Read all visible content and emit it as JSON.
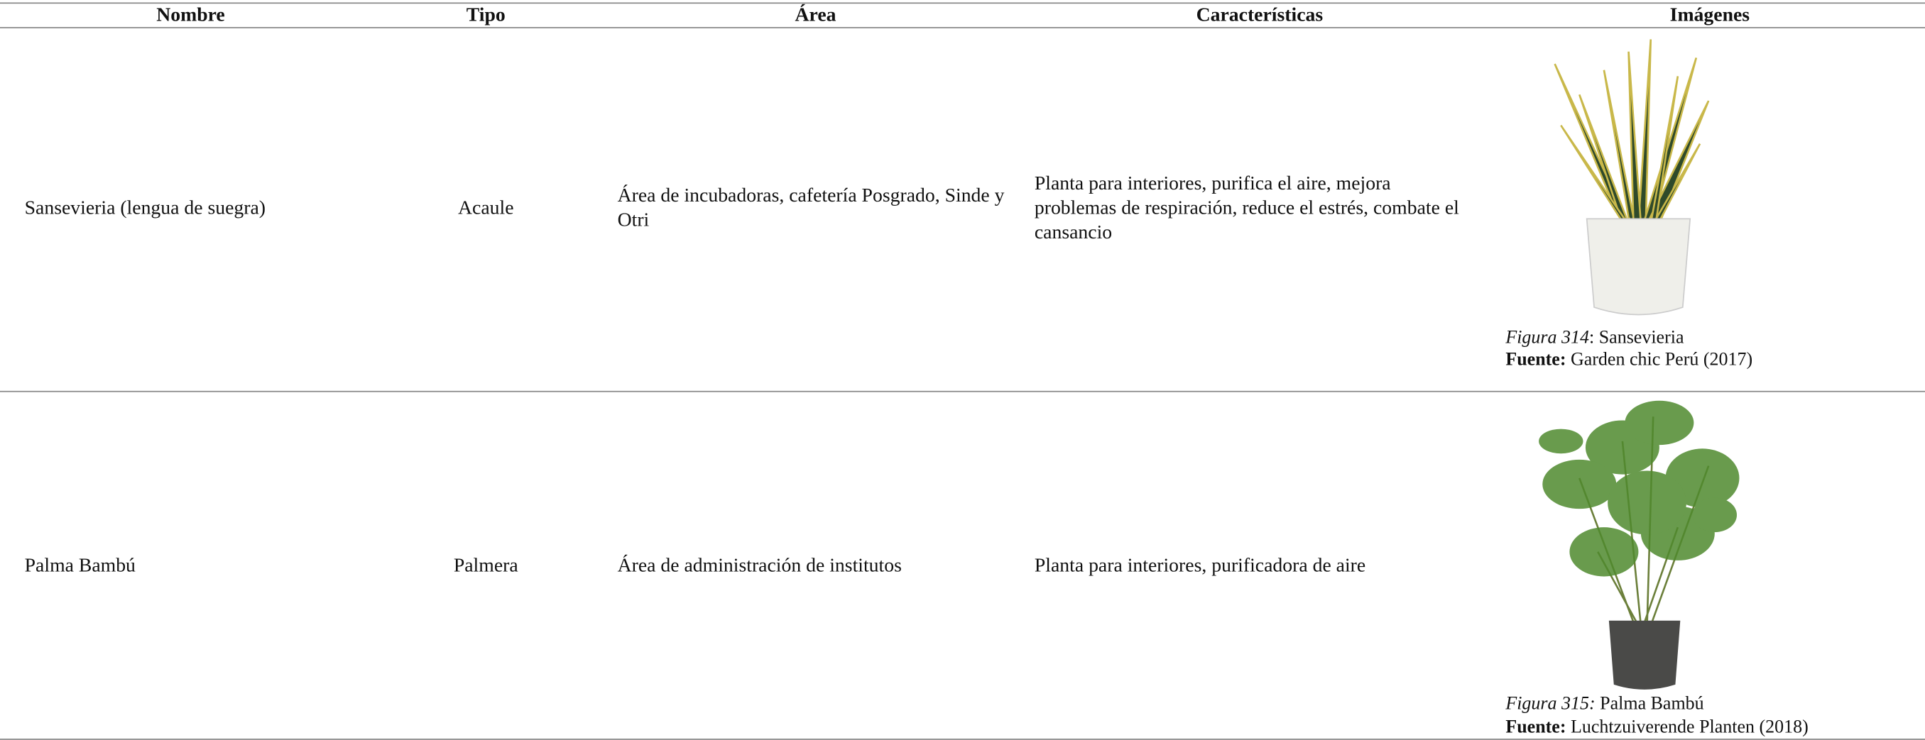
{
  "table": {
    "headers": [
      "Nombre",
      "Tipo",
      "Área",
      "Características",
      "Imágenes"
    ],
    "rows": [
      {
        "nombre": "Sansevieria (lengua de suegra)",
        "tipo": "Acaule",
        "area": "Área de incubadoras, cafetería Posgrado, Sinde y Otri",
        "caracteristicas": "Planta para interiores, purifica el aire, mejora problemas de respiración, reduce el estrés, combate el cansancio",
        "figura": "Figura 314",
        "figura_texto": ": Sansevieria",
        "fuente_label": "Fuente:",
        "fuente": " Garden chic Perú (2017)"
      },
      {
        "nombre": "Palma Bambú",
        "tipo": "Palmera",
        "area": "Área de administración de institutos",
        "caracteristicas": "Planta para interiores, purificadora de aire",
        "figura": "Figura 315:",
        "figura_texto": " Palma Bambú",
        "fuente_label": "Fuente:",
        "fuente": " Luchtzuiverende Planten (2018)"
      }
    ]
  }
}
